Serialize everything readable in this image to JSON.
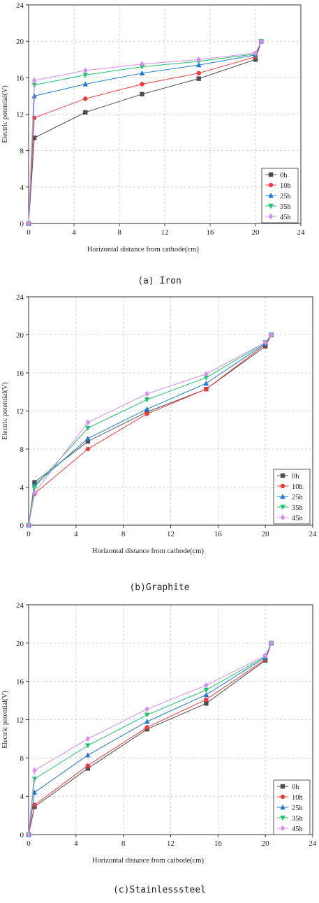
{
  "colors": {
    "0h": "#4d4d4d",
    "10h": "#f03c3c",
    "25h": "#1f77d0",
    "35h": "#1cc36a",
    "45h": "#d98cf0"
  },
  "markers": {
    "0h": "square",
    "10h": "circle",
    "25h": "triangle-up",
    "35h": "triangle-down",
    "45h": "diamond"
  },
  "chart_data": [
    {
      "type": "line",
      "caption": "(a) Iron",
      "xlabel": "Horizontal distance from cathode(cm)",
      "ylabel": "Electric potential(V)",
      "xlim": [
        0,
        24
      ],
      "ylim": [
        0,
        24
      ],
      "xticks": [
        "0",
        "4",
        "8",
        "12",
        "16",
        "20",
        "24"
      ],
      "yticks": [
        "0",
        "4",
        "8",
        "12",
        "16",
        "20",
        "24"
      ],
      "grid": true,
      "legend_position": "bottom-right",
      "x": [
        0,
        0.5,
        5,
        10,
        15,
        20,
        20.5
      ],
      "series": [
        {
          "name": "0h",
          "values": [
            0,
            9.4,
            12.2,
            14.2,
            15.9,
            18.0,
            20.0
          ]
        },
        {
          "name": "10h",
          "values": [
            0,
            11.6,
            13.7,
            15.3,
            16.5,
            18.3,
            20.0
          ]
        },
        {
          "name": "25h",
          "values": [
            0,
            14.0,
            15.3,
            16.5,
            17.4,
            18.5,
            20.0
          ]
        },
        {
          "name": "35h",
          "values": [
            0,
            15.2,
            16.3,
            17.2,
            17.8,
            18.6,
            20.0
          ]
        },
        {
          "name": "45h",
          "values": [
            0,
            15.7,
            16.8,
            17.5,
            18.0,
            18.7,
            20.0
          ]
        }
      ]
    },
    {
      "type": "line",
      "caption": "(b)Graphite",
      "xlabel": "Horizontal distance from cathode(cm)",
      "ylabel": "Electric potential(V)",
      "xlim": [
        0,
        24
      ],
      "ylim": [
        0,
        24
      ],
      "xticks": [
        "0",
        "4",
        "8",
        "12",
        "16",
        "20",
        "24"
      ],
      "yticks": [
        "0",
        "4",
        "8",
        "12",
        "16",
        "20",
        "24"
      ],
      "grid": true,
      "legend_position": "bottom-right",
      "x": [
        0,
        0.5,
        5,
        10,
        15,
        20,
        20.5
      ],
      "series": [
        {
          "name": "0h",
          "values": [
            0,
            4.5,
            8.8,
            11.9,
            14.3,
            18.8,
            20.0
          ]
        },
        {
          "name": "10h",
          "values": [
            0,
            3.3,
            8.0,
            11.7,
            14.3,
            19.0,
            20.0
          ]
        },
        {
          "name": "25h",
          "values": [
            0,
            4.2,
            9.1,
            12.2,
            14.9,
            19.1,
            20.0
          ]
        },
        {
          "name": "35h",
          "values": [
            0,
            4.0,
            10.2,
            13.2,
            15.5,
            19.2,
            20.0
          ]
        },
        {
          "name": "45h",
          "values": [
            0,
            3.4,
            10.8,
            13.8,
            15.9,
            19.2,
            20.0
          ]
        }
      ]
    },
    {
      "type": "line",
      "caption": "(c)Stainlesssteel",
      "xlabel": "Horizontal distance from cathode(cm)",
      "ylabel": "Electric potential(V)",
      "xlim": [
        0,
        24
      ],
      "ylim": [
        0,
        24
      ],
      "xticks": [
        "0",
        "4",
        "8",
        "12",
        "16",
        "20",
        "24"
      ],
      "yticks": [
        "0",
        "4",
        "8",
        "12",
        "16",
        "20",
        "24"
      ],
      "grid": true,
      "legend_position": "bottom-right",
      "x": [
        0,
        0.5,
        5,
        10,
        15,
        20,
        20.5
      ],
      "series": [
        {
          "name": "0h",
          "values": [
            0,
            2.9,
            6.9,
            11.0,
            13.7,
            18.2,
            20.0
          ]
        },
        {
          "name": "10h",
          "values": [
            0,
            3.1,
            7.2,
            11.2,
            14.1,
            18.3,
            20.0
          ]
        },
        {
          "name": "25h",
          "values": [
            0,
            4.4,
            8.3,
            11.8,
            14.6,
            18.5,
            20.0
          ]
        },
        {
          "name": "35h",
          "values": [
            0,
            5.8,
            9.3,
            12.5,
            15.1,
            18.6,
            20.0
          ]
        },
        {
          "name": "45h",
          "values": [
            0,
            6.7,
            10.0,
            13.1,
            15.6,
            18.7,
            20.0
          ]
        }
      ]
    }
  ]
}
